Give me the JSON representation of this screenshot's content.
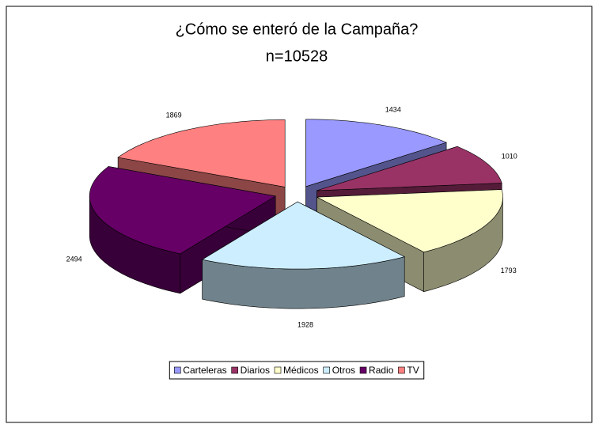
{
  "chart_data": {
    "type": "pie3d",
    "title": "¿Cómo se enteró de la Campaña?",
    "subtitle": "n=10528",
    "categories": [
      "Carteleras",
      "Diarios",
      "Médicos",
      "Otros",
      "Radio",
      "TV"
    ],
    "values": [
      1434,
      1010,
      1793,
      1928,
      2494,
      1869
    ],
    "colors": [
      "#9999ff",
      "#993366",
      "#ffffcc",
      "#cceeff",
      "#660066",
      "#ff8080"
    ],
    "legend": "bottom"
  }
}
